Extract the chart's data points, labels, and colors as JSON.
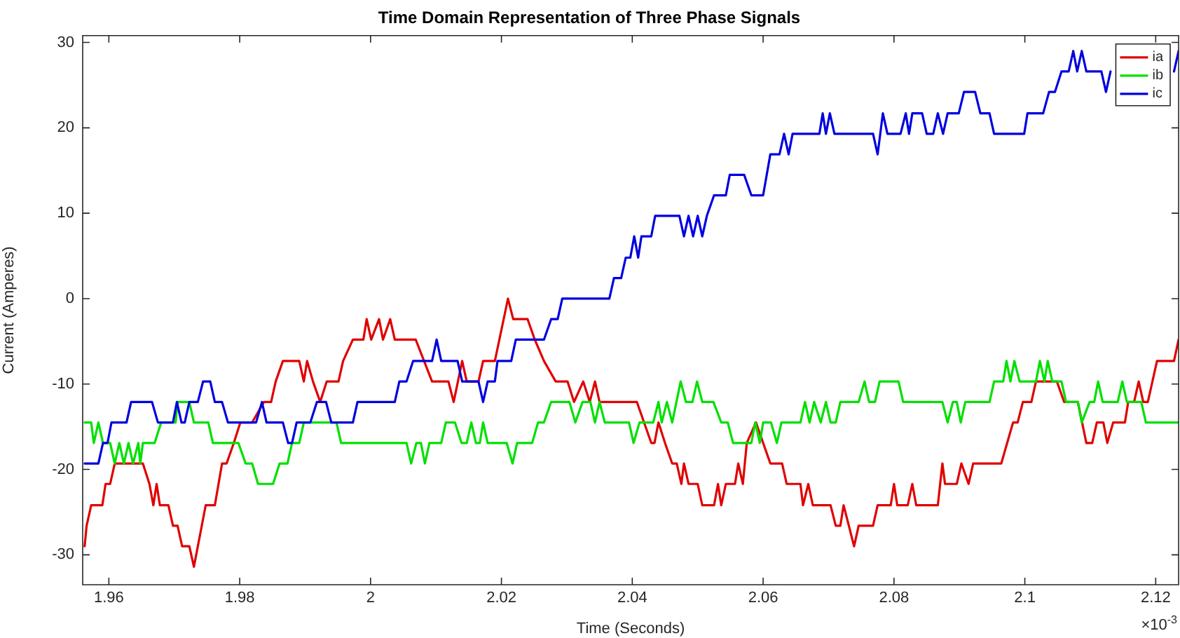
{
  "chart_data": {
    "type": "line",
    "title": "Time Domain Representation of Three Phase Signals",
    "xlabel": "Time (Seconds)",
    "ylabel": "Current (Amperes)",
    "xlim": [
      1.956,
      2.1235
    ],
    "xticks": [
      1.96,
      1.98,
      2,
      2.02,
      2.04,
      2.06,
      2.08,
      2.1,
      2.12
    ],
    "ylim": [
      -33.5,
      30.8
    ],
    "yticks": [
      -30,
      -20,
      -10,
      0,
      10,
      20,
      30
    ],
    "grid": false,
    "legend": "top right",
    "marker": "none",
    "line_style": "solid",
    "annotations": [
      "×10$^{-3}$"
    ],
    "series": [
      {
        "name": "ia",
        "color": "#e00000",
        "x": [
          1.9563,
          1.9566,
          1.9573,
          1.959,
          1.9595,
          1.9602,
          1.9609,
          1.9652,
          1.9662,
          1.9668,
          1.9673,
          1.9678,
          1.9691,
          1.9698,
          1.9705,
          1.9712,
          1.9723,
          1.973,
          1.9748,
          1.9762,
          1.9773,
          1.978,
          1.9791,
          1.9801,
          1.9819,
          1.9837,
          1.9848,
          1.9855,
          1.9866,
          1.9891,
          1.9898,
          1.9903,
          1.9912,
          1.9923,
          1.9933,
          1.9951,
          1.9958,
          1.9973,
          1.9989,
          1.9994,
          2.0001,
          2.0013,
          2.0019,
          2.003,
          2.0037,
          2.0069,
          2.0094,
          2.0119,
          2.0127,
          2.014,
          2.0147,
          2.0165,
          2.0172,
          2.019,
          2.021,
          2.0218,
          2.024,
          2.0251,
          2.0265,
          2.0283,
          2.0301,
          2.0311,
          2.0325,
          2.0335,
          2.0343,
          2.035,
          2.0407,
          2.0418,
          2.0429,
          2.0434,
          2.044,
          2.045,
          2.0461,
          2.0468,
          2.0475,
          2.0479,
          2.0486,
          2.05,
          2.0507,
          2.0525,
          2.0531,
          2.0536,
          2.0543,
          2.0557,
          2.0562,
          2.0569,
          2.0575,
          2.0589,
          2.06,
          2.0611,
          2.0629,
          2.0636,
          2.0657,
          2.0661,
          2.0669,
          2.0676,
          2.0703,
          2.0711,
          2.0718,
          2.0723,
          2.0731,
          2.0739,
          2.0746,
          2.0768,
          2.0775,
          2.0795,
          2.08,
          2.0805,
          2.0821,
          2.0828,
          2.0834,
          2.0867,
          2.0874,
          2.0878,
          2.0896,
          2.0903,
          2.0914,
          2.0921,
          2.0964,
          2.0973,
          2.0982,
          2.0989,
          2.0997,
          2.101,
          2.1017,
          2.1049,
          2.106,
          2.1081,
          2.1094,
          2.1103,
          2.111,
          2.112,
          2.1126,
          2.1135,
          2.1153,
          2.1158,
          2.1167,
          2.1174,
          2.1181,
          2.1188,
          2.1195,
          2.1202,
          2.1228,
          2.1235
        ],
        "values": [
          -29,
          -26.6,
          -24.2,
          -24.2,
          -21.7,
          -21.7,
          -19.3,
          -19.3,
          -21.7,
          -24.2,
          -21.7,
          -24.2,
          -24.2,
          -26.6,
          -26.6,
          -29,
          -29,
          -31.4,
          -24.2,
          -24.2,
          -19.3,
          -19.3,
          -16.9,
          -14.5,
          -14.5,
          -12.1,
          -12.1,
          -9.7,
          -7.3,
          -7.3,
          -9.7,
          -7.3,
          -9.7,
          -12.1,
          -9.7,
          -9.7,
          -7.3,
          -4.8,
          -4.8,
          -2.4,
          -4.8,
          -2.4,
          -4.8,
          -2.4,
          -4.8,
          -4.8,
          -9.7,
          -9.7,
          -12.1,
          -7.3,
          -9.7,
          -9.7,
          -7.3,
          -7.3,
          0,
          -2.4,
          -2.4,
          -4.8,
          -7.3,
          -9.7,
          -9.7,
          -12.1,
          -9.7,
          -12.1,
          -9.7,
          -12.1,
          -12.1,
          -14.5,
          -16.9,
          -16.9,
          -14.5,
          -16.9,
          -19.3,
          -19.3,
          -21.7,
          -19.3,
          -21.7,
          -21.7,
          -24.2,
          -24.2,
          -21.7,
          -24.2,
          -21.7,
          -21.7,
          -19.3,
          -21.7,
          -16.9,
          -14.5,
          -16.9,
          -19.3,
          -19.3,
          -21.7,
          -21.7,
          -24.2,
          -21.7,
          -24.2,
          -24.2,
          -26.6,
          -26.6,
          -24.2,
          -26.6,
          -29,
          -26.6,
          -26.6,
          -24.2,
          -24.2,
          -21.7,
          -24.2,
          -24.2,
          -21.7,
          -24.2,
          -24.2,
          -19.3,
          -21.7,
          -21.7,
          -19.3,
          -21.7,
          -19.3,
          -19.3,
          -16.9,
          -14.5,
          -14.5,
          -12.1,
          -12.1,
          -9.7,
          -9.7,
          -12.1,
          -12.1,
          -16.9,
          -16.9,
          -14.5,
          -14.5,
          -16.9,
          -14.5,
          -14.5,
          -12.1,
          -12.1,
          -9.7,
          -12.1,
          -12.1,
          -9.7,
          -7.3,
          -7.3,
          -4.8
        ]
      },
      {
        "name": "ib",
        "color": "#00e000",
        "x": [
          1.9563,
          1.9573,
          1.9577,
          1.9584,
          1.9591,
          1.9602,
          1.9609,
          1.9616,
          1.9623,
          1.963,
          1.9637,
          1.9645,
          1.9648,
          1.9652,
          1.967,
          1.968,
          1.9702,
          1.9705,
          1.9723,
          1.973,
          1.9752,
          1.9759,
          1.9798,
          1.9809,
          1.9819,
          1.9828,
          1.9851,
          1.9861,
          1.9873,
          1.988,
          1.9891,
          1.9898,
          1.9948,
          1.9955,
          2.0055,
          2.0062,
          2.007,
          2.0077,
          2.0083,
          2.009,
          2.0108,
          2.0115,
          2.0129,
          2.0139,
          2.0147,
          2.0154,
          2.0161,
          2.0167,
          2.0172,
          2.0179,
          2.0208,
          2.0217,
          2.0224,
          2.0247,
          2.0256,
          2.0265,
          2.0276,
          2.0304,
          2.0313,
          2.0324,
          2.0336,
          2.0343,
          2.035,
          2.0358,
          2.0395,
          2.0402,
          2.0411,
          2.0432,
          2.044,
          2.0445,
          2.0453,
          2.0461,
          2.0474,
          2.0482,
          2.0492,
          2.0499,
          2.0507,
          2.0524,
          2.0536,
          2.0546,
          2.0554,
          2.0582,
          2.0588,
          2.0595,
          2.06,
          2.0612,
          2.0621,
          2.0628,
          2.0657,
          2.0664,
          2.0671,
          2.0678,
          2.0688,
          2.0696,
          2.0703,
          2.0711,
          2.0718,
          2.0746,
          2.0755,
          2.0762,
          2.0771,
          2.0778,
          2.0807,
          2.0814,
          2.0874,
          2.0882,
          2.089,
          2.0896,
          2.0902,
          2.0909,
          2.0946,
          2.0953,
          2.0967,
          2.0972,
          2.0978,
          2.0984,
          2.0992,
          2.1017,
          2.1023,
          2.103,
          2.1035,
          2.1042,
          2.1056,
          2.1063,
          2.1081,
          2.1087,
          2.1099,
          2.1106,
          2.1112,
          2.1119,
          2.1142,
          2.1149,
          2.1156,
          2.1178,
          2.1185,
          2.1235
        ],
        "values": [
          -14.5,
          -14.5,
          -16.9,
          -14.5,
          -16.9,
          -16.9,
          -19.3,
          -16.9,
          -19.3,
          -16.9,
          -19.3,
          -16.9,
          -19.3,
          -16.9,
          -16.9,
          -14.5,
          -14.5,
          -12.1,
          -12.1,
          -14.5,
          -14.5,
          -16.9,
          -16.9,
          -19.3,
          -19.3,
          -21.7,
          -21.7,
          -19.3,
          -19.3,
          -16.9,
          -16.9,
          -14.5,
          -14.5,
          -16.9,
          -16.9,
          -19.3,
          -16.9,
          -16.9,
          -19.3,
          -16.9,
          -16.9,
          -14.5,
          -14.5,
          -16.9,
          -16.9,
          -14.5,
          -16.9,
          -16.9,
          -14.5,
          -16.9,
          -16.9,
          -19.3,
          -16.9,
          -16.9,
          -14.5,
          -14.5,
          -12.1,
          -12.1,
          -14.5,
          -12.1,
          -12.1,
          -14.5,
          -12.1,
          -14.5,
          -14.5,
          -16.9,
          -14.5,
          -14.5,
          -12.1,
          -14.5,
          -12.1,
          -14.5,
          -9.7,
          -12.1,
          -12.1,
          -9.7,
          -12.1,
          -12.1,
          -14.5,
          -14.5,
          -16.9,
          -16.9,
          -14.5,
          -16.9,
          -14.5,
          -14.5,
          -16.9,
          -14.5,
          -14.5,
          -12.1,
          -14.5,
          -12.1,
          -14.5,
          -12.1,
          -14.5,
          -14.5,
          -12.1,
          -12.1,
          -9.7,
          -12.1,
          -12.1,
          -9.7,
          -9.7,
          -12.1,
          -12.1,
          -14.5,
          -12.1,
          -12.1,
          -14.5,
          -12.1,
          -12.1,
          -9.7,
          -9.7,
          -7.3,
          -9.7,
          -7.3,
          -9.7,
          -9.7,
          -7.3,
          -9.7,
          -7.3,
          -9.7,
          -9.7,
          -12.1,
          -12.1,
          -14.5,
          -12.1,
          -12.1,
          -9.7,
          -12.1,
          -12.1,
          -9.7,
          -12.1,
          -12.1,
          -14.5,
          -14.5
        ]
      },
      {
        "name": "ic",
        "color": "#0000e0",
        "x": [
          1.9563,
          1.9584,
          1.9591,
          1.9598,
          1.9604,
          1.9627,
          1.9634,
          1.9666,
          1.9675,
          1.9698,
          1.9704,
          1.9711,
          1.9716,
          1.9723,
          1.9736,
          1.9744,
          1.9755,
          1.9762,
          1.9773,
          1.9782,
          1.9825,
          1.9834,
          1.9841,
          1.9866,
          1.9874,
          1.988,
          1.9887,
          1.9908,
          1.9918,
          1.9932,
          1.994,
          1.9973,
          1.998,
          2.0037,
          2.0044,
          2.0055,
          2.0065,
          2.0094,
          2.0101,
          2.0108,
          2.0133,
          2.014,
          2.0165,
          2.0172,
          2.0179,
          2.019,
          2.0194,
          2.0215,
          2.0222,
          2.0265,
          2.0276,
          2.0286,
          2.0293,
          2.0365,
          2.0372,
          2.0383,
          2.039,
          2.0397,
          2.0403,
          2.0409,
          2.0414,
          2.0429,
          2.0435,
          2.0472,
          2.0479,
          2.0486,
          2.0493,
          2.05,
          2.0507,
          2.0514,
          2.0525,
          2.0543,
          2.0549,
          2.0571,
          2.0582,
          2.06,
          2.0611,
          2.0625,
          2.0632,
          2.0639,
          2.0645,
          2.0686,
          2.0691,
          2.0696,
          2.0702,
          2.0709,
          2.0768,
          2.0775,
          2.0783,
          2.079,
          2.081,
          2.0818,
          2.0823,
          2.0828,
          2.0843,
          2.085,
          2.086,
          2.0867,
          2.0875,
          2.0882,
          2.0899,
          2.0907,
          2.0924,
          2.0932,
          2.0946,
          2.0953,
          2.0999,
          2.1004,
          2.1028,
          2.1037,
          2.1046,
          2.1056,
          2.1067,
          2.1074,
          2.108,
          2.1087,
          2.1094,
          2.1117,
          2.1124,
          2.1131,
          2.118,
          2.1228,
          2.1235
        ],
        "values": [
          -19.3,
          -19.3,
          -16.9,
          -16.9,
          -14.5,
          -14.5,
          -12.1,
          -12.1,
          -14.5,
          -14.5,
          -12.1,
          -14.5,
          -14.5,
          -12.1,
          -12.1,
          -9.7,
          -9.7,
          -12.1,
          -12.1,
          -14.5,
          -14.5,
          -12.1,
          -14.5,
          -14.5,
          -16.9,
          -16.9,
          -14.5,
          -14.5,
          -12.1,
          -12.1,
          -14.5,
          -14.5,
          -12.1,
          -12.1,
          -9.7,
          -9.7,
          -7.3,
          -7.3,
          -4.8,
          -7.3,
          -7.3,
          -9.7,
          -9.7,
          -12.1,
          -9.7,
          -9.7,
          -7.3,
          -7.3,
          -4.8,
          -4.8,
          -2.4,
          -2.4,
          0,
          0,
          2.4,
          2.4,
          4.8,
          4.8,
          7.3,
          4.8,
          7.3,
          7.3,
          9.7,
          9.7,
          7.3,
          9.7,
          7.3,
          9.7,
          7.3,
          9.7,
          12.1,
          12.1,
          14.5,
          14.5,
          12.1,
          12.1,
          16.9,
          16.9,
          19.3,
          16.9,
          19.3,
          19.3,
          21.7,
          19.3,
          21.7,
          19.3,
          19.3,
          16.9,
          21.7,
          19.3,
          19.3,
          21.7,
          19.3,
          21.7,
          21.7,
          19.3,
          19.3,
          21.7,
          19.3,
          21.7,
          21.7,
          24.2,
          24.2,
          21.7,
          21.7,
          19.3,
          19.3,
          21.7,
          21.7,
          24.2,
          24.2,
          26.6,
          26.6,
          29,
          26.6,
          29,
          26.6,
          26.6,
          24.2,
          26.6,
          null,
          26.6,
          29
        ]
      }
    ]
  }
}
